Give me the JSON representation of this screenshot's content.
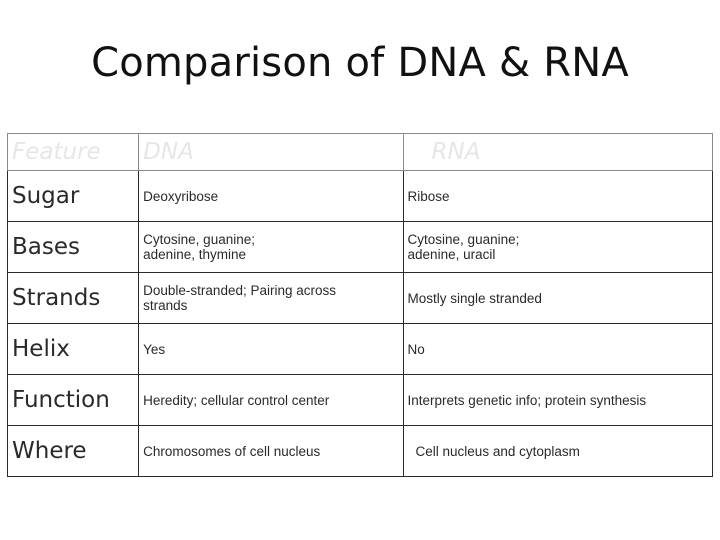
{
  "title": "Comparison of DNA & RNA",
  "table": {
    "headers": [
      "Feature",
      "DNA",
      "RNA"
    ],
    "rows": [
      {
        "feature": "Sugar",
        "dna": [
          "Deoxyribose"
        ],
        "rna": [
          "Ribose"
        ]
      },
      {
        "feature": "Bases",
        "dna": [
          "Cytosine, guanine;",
          "adenine, thymine"
        ],
        "rna": [
          "Cytosine, guanine;",
          "adenine, uracil"
        ]
      },
      {
        "feature": "Strands",
        "dna": [
          "Double-stranded; Pairing across",
          "strands"
        ],
        "rna": [
          "Mostly single stranded"
        ]
      },
      {
        "feature": "Helix",
        "dna": [
          "Yes"
        ],
        "rna": [
          "No"
        ]
      },
      {
        "feature": "Function",
        "dna": [
          "Heredity; cellular control center"
        ],
        "rna": [
          "Interprets genetic info; protein synthesis"
        ]
      },
      {
        "feature": "Where",
        "dna": [
          "Chromosomes of cell nucleus"
        ],
        "rna": [
          "Cell nucleus and cytoplasm"
        ]
      }
    ]
  }
}
